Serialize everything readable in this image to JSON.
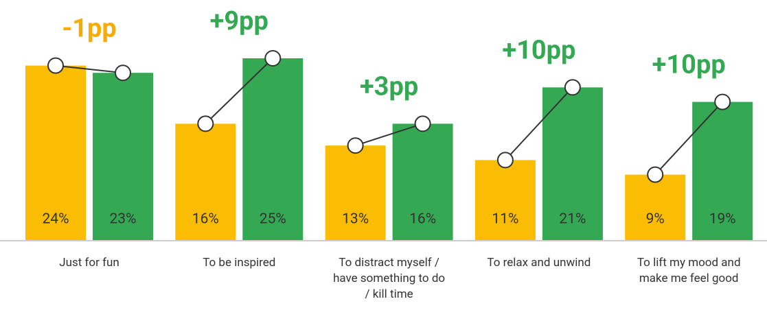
{
  "chart_data": {
    "type": "bar",
    "categories": [
      "Just for fun",
      "To be inspired",
      "To distract myself / have something to do / kill time",
      "To relax and unwind",
      "To lift my mood and make me feel good"
    ],
    "series": [
      {
        "color": "#fbbc04",
        "values": [
          24,
          16,
          13,
          11,
          9
        ],
        "value_labels": [
          "24%",
          "16%",
          "13%",
          "11%",
          "9%"
        ]
      },
      {
        "color": "#34a853",
        "values": [
          23,
          25,
          16,
          21,
          19
        ],
        "value_labels": [
          "23%",
          "25%",
          "16%",
          "21%",
          "19%"
        ]
      }
    ],
    "annotations": [
      {
        "text": "-1pp",
        "color": "#f9ab00"
      },
      {
        "text": "+9pp",
        "color": "#34a853"
      },
      {
        "text": "+3pp",
        "color": "#34a853"
      },
      {
        "text": "+10pp",
        "color": "#34a853"
      },
      {
        "text": "+10pp",
        "color": "#34a853"
      }
    ]
  }
}
